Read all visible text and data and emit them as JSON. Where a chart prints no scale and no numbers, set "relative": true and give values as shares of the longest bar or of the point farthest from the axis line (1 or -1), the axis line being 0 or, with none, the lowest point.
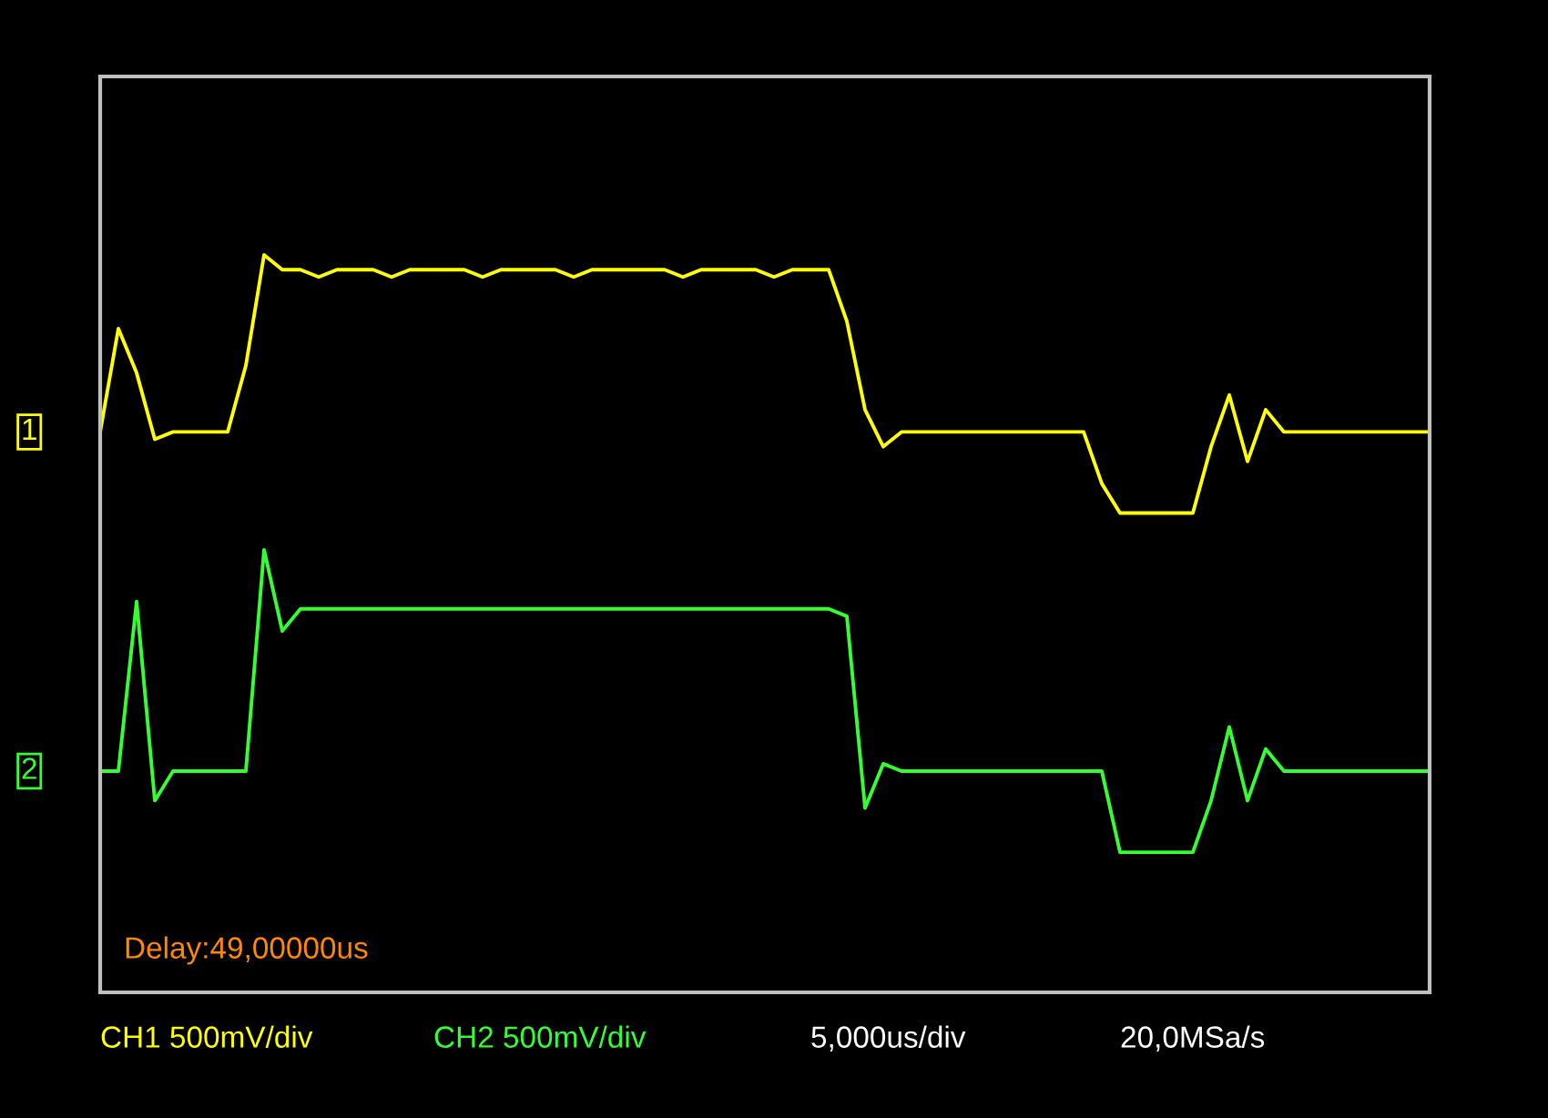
{
  "chart_data": {
    "type": "line",
    "relative": true,
    "legend": false,
    "categories": [
      null,
      null,
      null,
      null,
      null,
      null,
      null,
      null,
      null,
      null,
      null,
      null,
      null,
      null,
      null,
      null,
      null,
      null,
      null,
      null,
      null,
      null,
      null,
      null,
      null,
      null,
      null,
      null,
      null,
      null,
      null,
      null,
      null,
      null,
      null,
      null,
      null,
      null,
      null,
      null,
      null,
      null,
      null,
      null,
      null,
      null,
      null,
      null,
      null,
      null,
      null,
      null,
      null,
      null,
      null,
      null,
      null,
      null,
      null,
      null,
      null,
      null,
      null,
      null,
      null,
      null,
      null,
      null,
      null,
      null,
      null,
      null,
      null,
      null
    ],
    "series": [
      {
        "name": "1",
        "color": "#ffff00",
        "values": [
          0.76,
          0.9,
          0.84,
          0.75,
          0.76,
          0.76,
          0.76,
          0.76,
          0.85,
          1.0,
          0.98,
          0.98,
          0.97,
          0.98,
          0.98,
          0.98,
          0.97,
          0.98,
          0.98,
          0.98,
          0.98,
          0.97,
          0.98,
          0.98,
          0.98,
          0.98,
          0.97,
          0.98,
          0.98,
          0.98,
          0.98,
          0.98,
          0.97,
          0.98,
          0.98,
          0.98,
          0.98,
          0.97,
          0.98,
          0.98,
          0.98,
          0.91,
          0.79,
          0.74,
          0.76,
          0.76,
          0.76,
          0.76,
          0.76,
          0.76,
          0.76,
          0.76,
          0.76,
          0.76,
          0.76,
          0.69,
          0.65,
          0.65,
          0.65,
          0.65,
          0.65,
          0.74,
          0.81,
          0.72,
          0.79,
          0.76,
          0.76,
          0.76,
          0.76,
          0.76,
          0.76,
          0.76,
          0.76,
          0.76
        ]
      },
      {
        "name": "2",
        "color": "#33ff33",
        "values": [
          0.3,
          0.3,
          0.53,
          0.26,
          0.3,
          0.3,
          0.3,
          0.3,
          0.3,
          0.6,
          0.49,
          0.52,
          0.52,
          0.52,
          0.52,
          0.52,
          0.52,
          0.52,
          0.52,
          0.52,
          0.52,
          0.52,
          0.52,
          0.52,
          0.52,
          0.52,
          0.52,
          0.52,
          0.52,
          0.52,
          0.52,
          0.52,
          0.52,
          0.52,
          0.52,
          0.52,
          0.52,
          0.52,
          0.52,
          0.52,
          0.52,
          0.51,
          0.25,
          0.31,
          0.3,
          0.3,
          0.3,
          0.3,
          0.3,
          0.3,
          0.3,
          0.3,
          0.3,
          0.3,
          0.3,
          0.3,
          0.19,
          0.19,
          0.19,
          0.19,
          0.19,
          0.26,
          0.36,
          0.26,
          0.33,
          0.3,
          0.3,
          0.3,
          0.3,
          0.3,
          0.3,
          0.3,
          0.3,
          0.3
        ]
      }
    ],
    "annotations": [
      "Delay:49,00000us",
      "CH1 500mV/div",
      "CH2 500mV/div",
      "5,000us/div",
      "20,0MSa/s"
    ]
  }
}
